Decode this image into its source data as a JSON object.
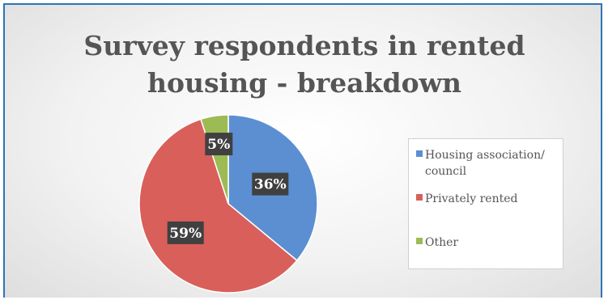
{
  "chart_data": {
    "type": "pie",
    "title_lines": [
      "Survey respondents in rented",
      "housing - breakdown"
    ],
    "categories": [
      "Housing association/ council",
      "Privately rented",
      "Other"
    ],
    "values": [
      36,
      59,
      5
    ],
    "labels": [
      "36%",
      "59%",
      "5%"
    ],
    "colors": [
      "#5b8fd2",
      "#d95f5b",
      "#9dbb55"
    ],
    "start_angle_deg": 0,
    "direction": "clockwise",
    "legend_position": "right",
    "legend_lines": [
      [
        "Housing association/",
        "council"
      ],
      [
        "Privately rented"
      ],
      [
        "Other"
      ]
    ]
  }
}
